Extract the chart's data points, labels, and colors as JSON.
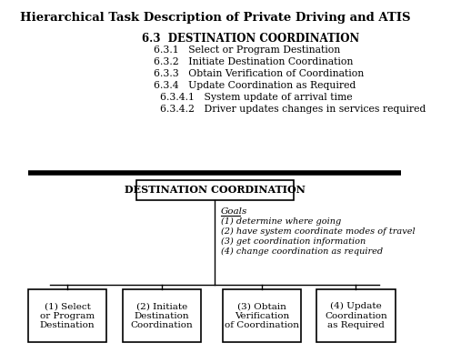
{
  "title": "Hierarchical Task Description of Private Driving and ATIS",
  "top_heading": "6.3  DESTINATION COORDINATION",
  "top_items": [
    "6.3.1   Select or Program Destination",
    "6.3.2   Initiate Destination Coordination",
    "6.3.3   Obtain Verification of Coordination",
    "6.3.4   Update Coordination as Required",
    "6.3.4.1   System update of arrival time",
    "6.3.4.2   Driver updates changes in services required"
  ],
  "top_item_indents": [
    170,
    170,
    170,
    170,
    178,
    178
  ],
  "box_title": "DESTINATION COORDINATION",
  "goals_label": "Goals",
  "goals": [
    "(1) determine where going",
    "(2) have system coordinate modes of travel",
    "(3) get coordination information",
    "(4) change coordination as required"
  ],
  "child_boxes": [
    "(1) Select\nor Program\nDestination",
    "(2) Initiate\nDestination\nCoordination",
    "(3) Obtain\nVerification\nof Coordination",
    "(4) Update\nCoordination\nas Required"
  ],
  "bg_color": "#ffffff",
  "text_color": "#000000",
  "line_color": "#000000"
}
